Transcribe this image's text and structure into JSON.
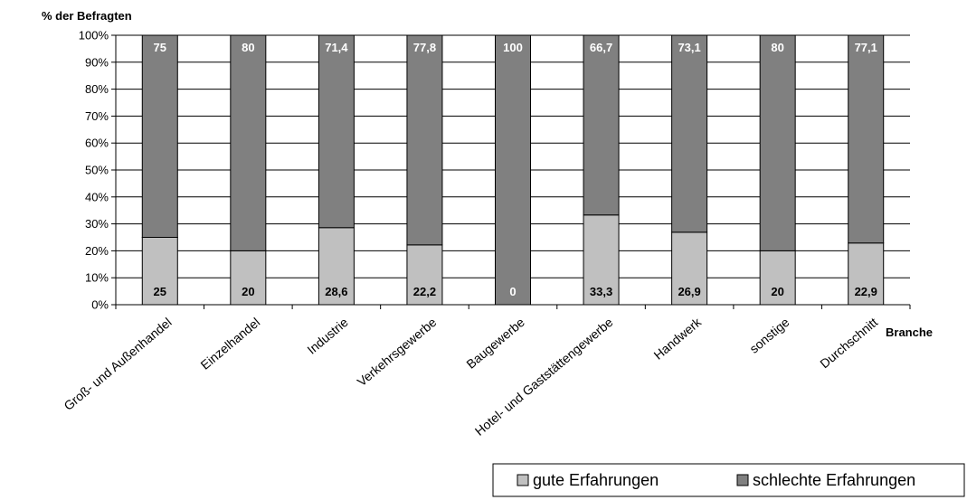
{
  "chart_data": {
    "type": "bar",
    "stacked": true,
    "ylabel": "% der Befragten",
    "xlabel": "Branche",
    "ylim": [
      0,
      100
    ],
    "yticks": [
      "0%",
      "10%",
      "20%",
      "30%",
      "40%",
      "50%",
      "60%",
      "70%",
      "80%",
      "90%",
      "100%"
    ],
    "grid": true,
    "legend_position": "bottom-right",
    "categories": [
      "Groß- und Außenhandel",
      "Einzelhandel",
      "Industrie",
      "Verkehrsgewerbe",
      "Baugewerbe",
      "Hotel- und Gaststättengewerbe",
      "Handwerk",
      "sonstige",
      "Durchschnitt"
    ],
    "series": [
      {
        "name": "gute Erfahrungen",
        "color": "#c0c0c0",
        "values": [
          25,
          20,
          28.6,
          22.2,
          0,
          33.3,
          26.9,
          20,
          22.9
        ],
        "labels": [
          "25",
          "20",
          "28,6",
          "22,2",
          "0",
          "33,3",
          "26,9",
          "20",
          "22,9"
        ]
      },
      {
        "name": "schlechte Erfahrungen",
        "color": "#808080",
        "values": [
          75,
          80,
          71.4,
          77.8,
          100,
          66.7,
          73.1,
          80,
          77.1
        ],
        "labels": [
          "75",
          "80",
          "71,4",
          "77,8",
          "100",
          "66,7",
          "73,1",
          "80",
          "77,1"
        ]
      }
    ]
  }
}
